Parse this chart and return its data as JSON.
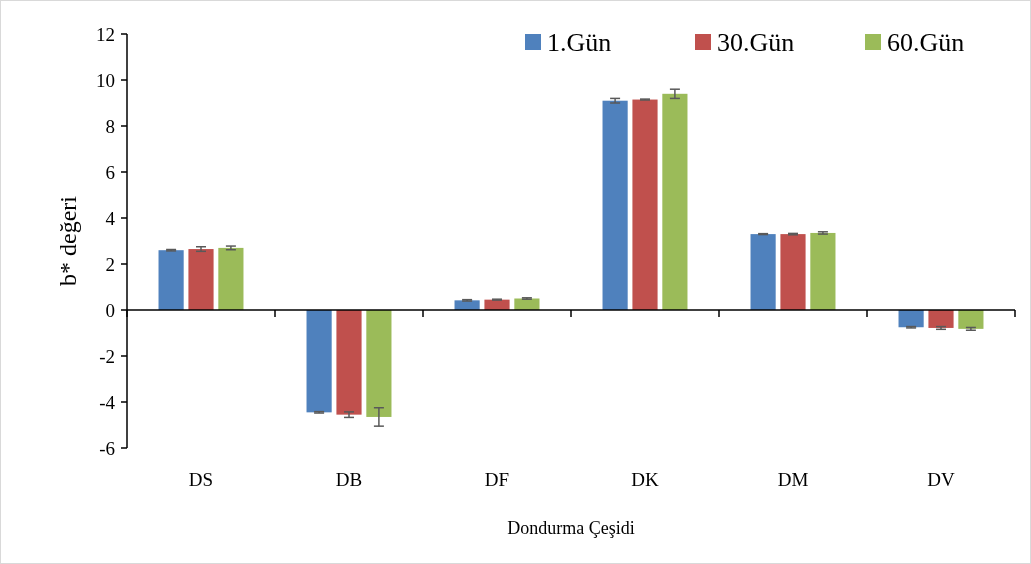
{
  "chart_data": {
    "type": "bar",
    "xlabel": "Dondurma Çeşidi",
    "ylabel": "b* değeri",
    "categories": [
      "DS",
      "DB",
      "DF",
      "DK",
      "DM",
      "DV"
    ],
    "series": [
      {
        "name": "1.Gün",
        "color": "#4f81bd",
        "values": [
          2.6,
          -4.45,
          0.42,
          9.1,
          3.3,
          -0.75
        ],
        "errors": [
          0.03,
          0.03,
          0.03,
          0.1,
          0.02,
          0.03
        ]
      },
      {
        "name": "30.Gün",
        "color": "#c0504d",
        "values": [
          2.65,
          -4.55,
          0.45,
          9.15,
          3.3,
          -0.78
        ],
        "errors": [
          0.1,
          0.12,
          0.02,
          0.02,
          0.03,
          0.06
        ]
      },
      {
        "name": "60.Gün",
        "color": "#9bbb59",
        "values": [
          2.7,
          -4.65,
          0.5,
          9.4,
          3.35,
          -0.82
        ],
        "errors": [
          0.08,
          0.4,
          0.03,
          0.2,
          0.05,
          0.06
        ]
      }
    ],
    "ylim": [
      -6,
      12
    ],
    "yticks": [
      -6,
      -4,
      -2,
      0,
      2,
      4,
      6,
      8,
      10,
      12
    ],
    "legend": "top right"
  }
}
